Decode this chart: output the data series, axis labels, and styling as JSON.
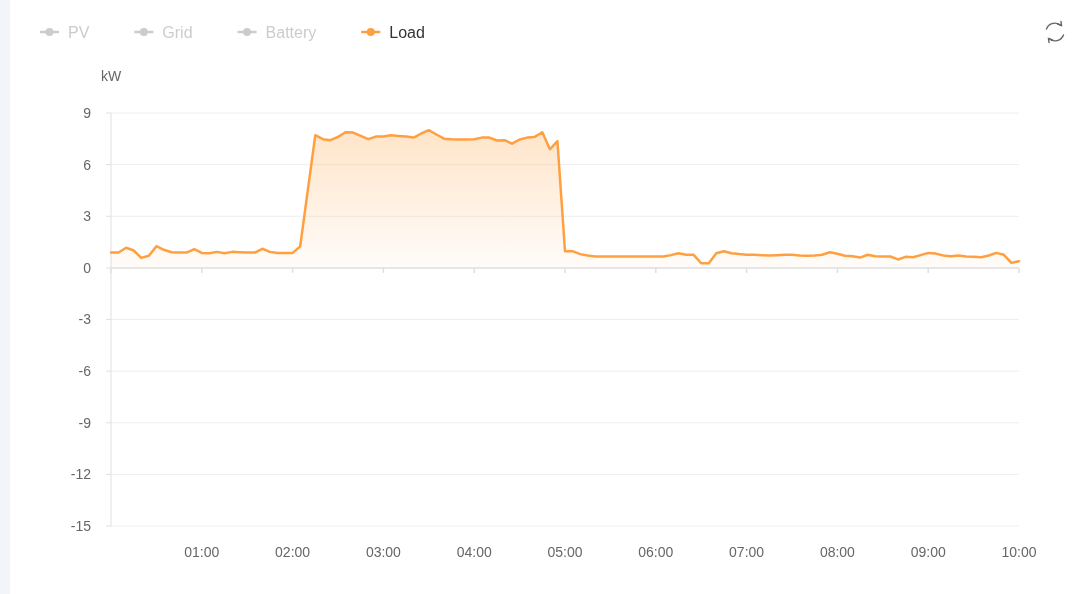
{
  "chart_data": {
    "type": "area",
    "ylabel": "kW",
    "xlim": [
      0,
      10
    ],
    "xticks": [
      {
        "value": 0,
        "label": null
      },
      {
        "value": 1,
        "label": "01:00"
      },
      {
        "value": 2,
        "label": "02:00"
      },
      {
        "value": 3,
        "label": "03:00"
      },
      {
        "value": 4,
        "label": "04:00"
      },
      {
        "value": 5,
        "label": "05:00"
      },
      {
        "value": 6,
        "label": "06:00"
      },
      {
        "value": 7,
        "label": "07:00"
      },
      {
        "value": 8,
        "label": "08:00"
      },
      {
        "value": 9,
        "label": "09:00"
      },
      {
        "value": 10,
        "label": "10:00"
      }
    ],
    "ylim": [
      -15,
      9
    ],
    "yticks": [
      -15,
      -12,
      -9,
      -6,
      -3,
      0,
      3,
      6,
      9
    ],
    "grid": "y",
    "legend": "top left",
    "series": [
      {
        "name": "PV",
        "color": "#cccccc"
      },
      {
        "name": "Grid",
        "color": "#cccccc"
      },
      {
        "name": "Battery",
        "color": "#cccccc"
      },
      {
        "name": "Load",
        "color": "#ffa040",
        "x": [
          0,
          0.0833,
          0.1667,
          0.25,
          0.3333,
          0.4167,
          0.5,
          0.5833,
          0.6667,
          0.75,
          0.8333,
          0.9167,
          1,
          1.0833,
          1.1667,
          1.25,
          1.3333,
          1.4167,
          1.5,
          1.5833,
          1.6667,
          1.75,
          1.8333,
          1.9167,
          2,
          2.0833,
          2.25,
          2.3333,
          2.4167,
          2.5,
          2.5833,
          2.6667,
          2.75,
          2.8333,
          2.9167,
          3,
          3.0833,
          3.1667,
          3.25,
          3.3333,
          3.4167,
          3.5,
          3.5833,
          3.6667,
          3.75,
          3.8333,
          3.9167,
          4,
          4.0833,
          4.1667,
          4.25,
          4.3333,
          4.4167,
          4.5,
          4.5833,
          4.6667,
          4.75,
          4.8333,
          4.9167,
          5,
          5.0833,
          5.1667,
          5.25,
          5.3333,
          5.4167,
          5.5,
          5.5833,
          5.6667,
          5.75,
          5.8333,
          5.9167,
          6,
          6.0833,
          6.1667,
          6.25,
          6.3333,
          6.4167,
          6.5,
          6.5833,
          6.6667,
          6.75,
          6.8333,
          6.9167,
          7,
          7.0833,
          7.1667,
          7.25,
          7.3333,
          7.4167,
          7.5,
          7.5833,
          7.6667,
          7.75,
          7.8333,
          7.9167,
          8,
          8.0833,
          8.1667,
          8.25,
          8.3333,
          8.4167,
          8.5,
          8.5833,
          8.6667,
          8.75,
          8.8333,
          8.9167,
          9,
          9.0833,
          9.1667,
          9.25,
          9.3333,
          9.4167,
          9.5,
          9.5833,
          9.6667,
          9.75,
          9.8333,
          9.9167,
          10
        ],
        "values": [
          0.89,
          0.89,
          1.17,
          1.01,
          0.58,
          0.7,
          1.26,
          1.05,
          0.91,
          0.89,
          0.89,
          1.09,
          0.87,
          0.85,
          0.93,
          0.85,
          0.93,
          0.91,
          0.89,
          0.89,
          1.11,
          0.93,
          0.87,
          0.87,
          0.87,
          1.24,
          7.71,
          7.48,
          7.42,
          7.61,
          7.88,
          7.86,
          7.67,
          7.48,
          7.63,
          7.63,
          7.71,
          7.67,
          7.63,
          7.57,
          7.81,
          8.0,
          7.75,
          7.51,
          7.48,
          7.46,
          7.46,
          7.48,
          7.57,
          7.57,
          7.4,
          7.42,
          7.22,
          7.46,
          7.57,
          7.61,
          7.88,
          6.89,
          7.36,
          0.97,
          0.97,
          0.8,
          0.72,
          0.66,
          0.66,
          0.66,
          0.66,
          0.66,
          0.66,
          0.66,
          0.66,
          0.66,
          0.66,
          0.74,
          0.85,
          0.76,
          0.76,
          0.27,
          0.27,
          0.85,
          0.97,
          0.85,
          0.8,
          0.76,
          0.76,
          0.74,
          0.72,
          0.74,
          0.76,
          0.76,
          0.72,
          0.7,
          0.72,
          0.76,
          0.91,
          0.82,
          0.7,
          0.68,
          0.6,
          0.76,
          0.68,
          0.66,
          0.66,
          0.49,
          0.64,
          0.62,
          0.74,
          0.87,
          0.83,
          0.72,
          0.68,
          0.72,
          0.66,
          0.64,
          0.62,
          0.72,
          0.87,
          0.76,
          0.29,
          0.39
        ]
      }
    ]
  }
}
